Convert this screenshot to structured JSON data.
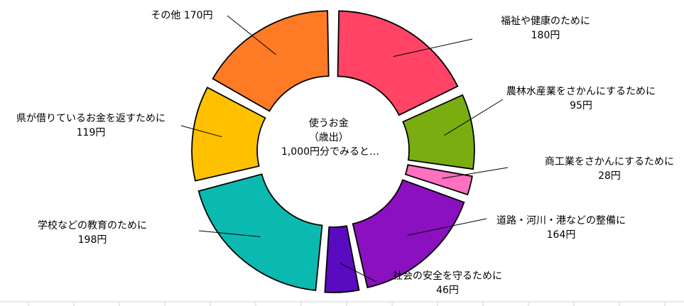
{
  "chart_data": {
    "type": "pie",
    "style": "exploded-donut",
    "center_text": [
      "使うお金",
      "（歳出）",
      "1,000円分でみると…"
    ],
    "unit": "円",
    "slices": [
      {
        "label": "福祉や健康のために",
        "value": 180,
        "value_text": "180円",
        "color": "#FF4466"
      },
      {
        "label": "農林水産業をさかんにするために",
        "value": 95,
        "value_text": "95円",
        "color": "#7AAE10"
      },
      {
        "label": "商工業をさかんにするために",
        "value": 28,
        "value_text": "28円",
        "color": "#FF70C0"
      },
      {
        "label": "道路・河川・港などの整備に",
        "value": 164,
        "value_text": "164円",
        "color": "#8A10C0"
      },
      {
        "label": "社会の安全を守るために",
        "value": 46,
        "value_text": "46円",
        "color": "#5A0ABF"
      },
      {
        "label": "学校などの教育のために",
        "value": 198,
        "value_text": "198円",
        "color": "#0ABAB0"
      },
      {
        "label": "県が借りているお金を返すために",
        "value": 119,
        "value_text": "119円",
        "color": "#FFC000"
      },
      {
        "label": "その他",
        "value": 170,
        "value_text": "その他 170円",
        "color": "#FF7A25"
      }
    ]
  }
}
